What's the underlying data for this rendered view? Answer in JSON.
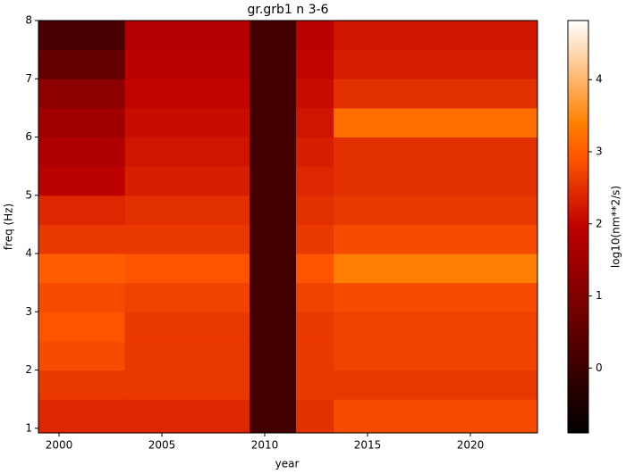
{
  "chart_data": {
    "type": "heatmap",
    "title": "gr.grb1 n 3-6",
    "x_label": "year",
    "y_label": "freq (Hz)",
    "colorbar_label": "log10(nm**2/s)",
    "colormap": "gist_heat",
    "x_edges": [
      1999,
      2003.2,
      2009.26,
      2011.52,
      2013.35,
      2023.26
    ],
    "y_edges": [
      0.92,
      1.5,
      2,
      2.5,
      3,
      3.5,
      4,
      4.5,
      5,
      5.5,
      6,
      6.5,
      7,
      7.5,
      8
    ],
    "z": [
      [
        2.4,
        2.4,
        0.1,
        2.5,
        2.8
      ],
      [
        2.6,
        2.6,
        0.1,
        2.6,
        2.6
      ],
      [
        2.8,
        2.6,
        0.1,
        2.6,
        2.7
      ],
      [
        2.9,
        2.6,
        0.1,
        2.6,
        2.7
      ],
      [
        2.8,
        2.7,
        0.1,
        2.7,
        2.8
      ],
      [
        3.0,
        2.9,
        0.1,
        2.9,
        3.4
      ],
      [
        2.6,
        2.6,
        0.1,
        2.6,
        2.8
      ],
      [
        2.4,
        2.5,
        0.1,
        2.5,
        2.6
      ],
      [
        1.9,
        2.3,
        0.1,
        2.4,
        2.5
      ],
      [
        1.7,
        2.2,
        0.1,
        2.3,
        2.5
      ],
      [
        1.5,
        2.1,
        0.1,
        2.2,
        3.2
      ],
      [
        1.2,
        2.0,
        0.1,
        2.1,
        2.5
      ],
      [
        0.6,
        1.9,
        0.1,
        2.0,
        2.3
      ],
      [
        0.2,
        1.8,
        0.1,
        1.9,
        2.2
      ]
    ],
    "xlim": [
      1999,
      2023.26
    ],
    "ylim": [
      0.92,
      8
    ],
    "xticks": [
      2000,
      2005,
      2010,
      2015,
      2020
    ],
    "yticks": [
      1,
      2,
      3,
      4,
      5,
      6,
      7,
      8
    ],
    "clim": [
      -0.9,
      4.82
    ],
    "cticks": [
      0,
      1,
      2,
      3,
      4
    ]
  }
}
